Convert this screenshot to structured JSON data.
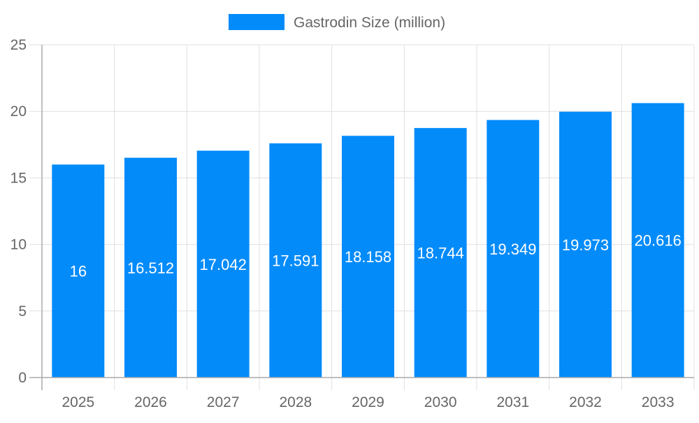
{
  "chart_data": {
    "type": "bar",
    "title": "",
    "xlabel": "",
    "ylabel": "",
    "categories": [
      "2025",
      "2026",
      "2027",
      "2028",
      "2029",
      "2030",
      "2031",
      "2032",
      "2033"
    ],
    "series": [
      {
        "name": "Gastrodin Size (million)",
        "values": [
          16,
          16.512,
          17.042,
          17.591,
          18.158,
          18.744,
          19.349,
          19.973,
          20.616
        ],
        "color": "#038bfa"
      }
    ],
    "ylim": [
      0,
      25
    ],
    "yticks": [
      0,
      5,
      10,
      15,
      20,
      25
    ],
    "grid": true,
    "legend": "top-center",
    "data_labels": true,
    "data_label_color": "#ffffff"
  }
}
